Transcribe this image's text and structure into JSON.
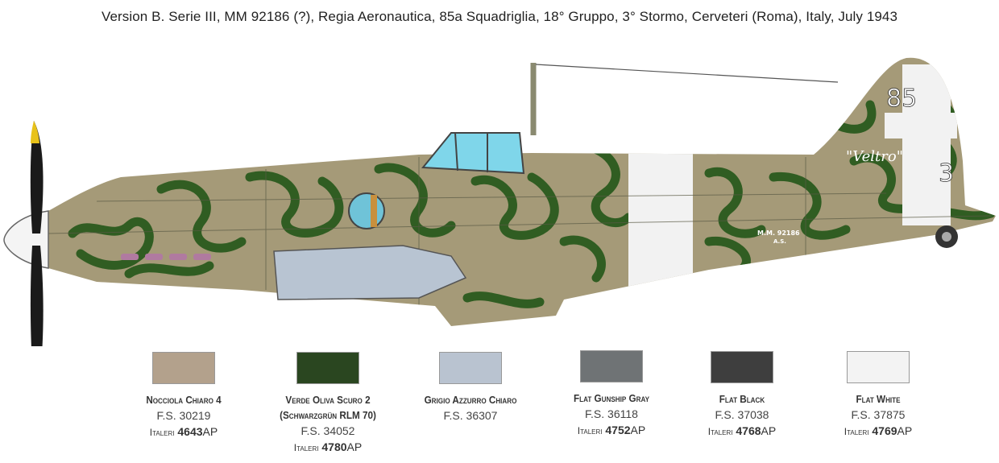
{
  "header": {
    "title": "Version B. Serie III, MM 92186 (?), Regia Aeronautica, 85a Squadriglia, 18° Gruppo, 3° Stormo, Cerveteri (Roma), Italy, July 1943"
  },
  "aircraft": {
    "markings": {
      "squadron_number": "85",
      "aircraft_number": "3",
      "name": "\"Veltro\"",
      "serial": "M.M. 92186",
      "serial_sub": "A.S."
    },
    "colors": {
      "base": "#a59a78",
      "camo": "#2a5a1e",
      "underside": "#b8c4d2",
      "band": "#f2f2f2",
      "canopy": "#7fd6ea",
      "prop": "#1a1a1a",
      "prop_tip": "#e8c21a"
    }
  },
  "swatches": [
    {
      "name": "Nocciola Chiaro 4",
      "fs": "F.S. 30219",
      "brand": "Italeri",
      "code": "4643",
      "suffix": "AP",
      "color": "#b3a18c"
    },
    {
      "name": "Verde Oliva Scuro 2",
      "name2": "(Schwarzgrün RLM 70)",
      "fs": "F.S. 34052",
      "brand": "Italeri",
      "code": "4780",
      "suffix": "AP",
      "color": "#2a4620"
    },
    {
      "name": "Grigio Azzurro Chiaro",
      "fs": "F.S. 36307",
      "color": "#b9c3d0"
    },
    {
      "name": "Flat Gunship Gray",
      "fs": "F.S. 36118",
      "brand": "Italeri",
      "code": "4752",
      "suffix": "AP",
      "color": "#6f7375"
    },
    {
      "name": "Flat Black",
      "fs": "F.S. 37038",
      "brand": "Italeri",
      "code": "4768",
      "suffix": "AP",
      "color": "#3e3e3e"
    },
    {
      "name": "Flat White",
      "fs": "F.S. 37875",
      "brand": "Italeri",
      "code": "4769",
      "suffix": "AP",
      "color": "#f3f3f3"
    }
  ]
}
